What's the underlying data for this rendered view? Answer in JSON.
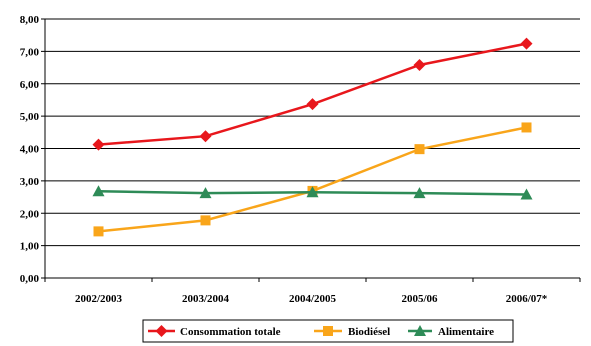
{
  "chart_data": {
    "type": "line",
    "title": "",
    "xlabel": "",
    "ylabel": "",
    "categories": [
      "2002/2003",
      "2003/2004",
      "2004/2005",
      "2005/06",
      "2006/07*"
    ],
    "ylim": [
      0,
      8
    ],
    "yticks": [
      "0,00",
      "1,00",
      "2,00",
      "3,00",
      "4,00",
      "5,00",
      "6,00",
      "7,00",
      "8,00"
    ],
    "grid": "horizontal",
    "legend_position": "bottom",
    "series": [
      {
        "name": "Consommation totale",
        "color": "#e8171c",
        "marker": "diamond",
        "values": [
          4.12,
          4.38,
          5.37,
          6.58,
          7.24
        ]
      },
      {
        "name": "Biodiésel",
        "color": "#f9a51a",
        "marker": "square",
        "values": [
          1.44,
          1.78,
          2.69,
          3.98,
          4.65
        ]
      },
      {
        "name": "Alimentaire",
        "color": "#2e8b57",
        "marker": "triangle",
        "values": [
          2.68,
          2.62,
          2.65,
          2.62,
          2.58
        ]
      }
    ]
  }
}
